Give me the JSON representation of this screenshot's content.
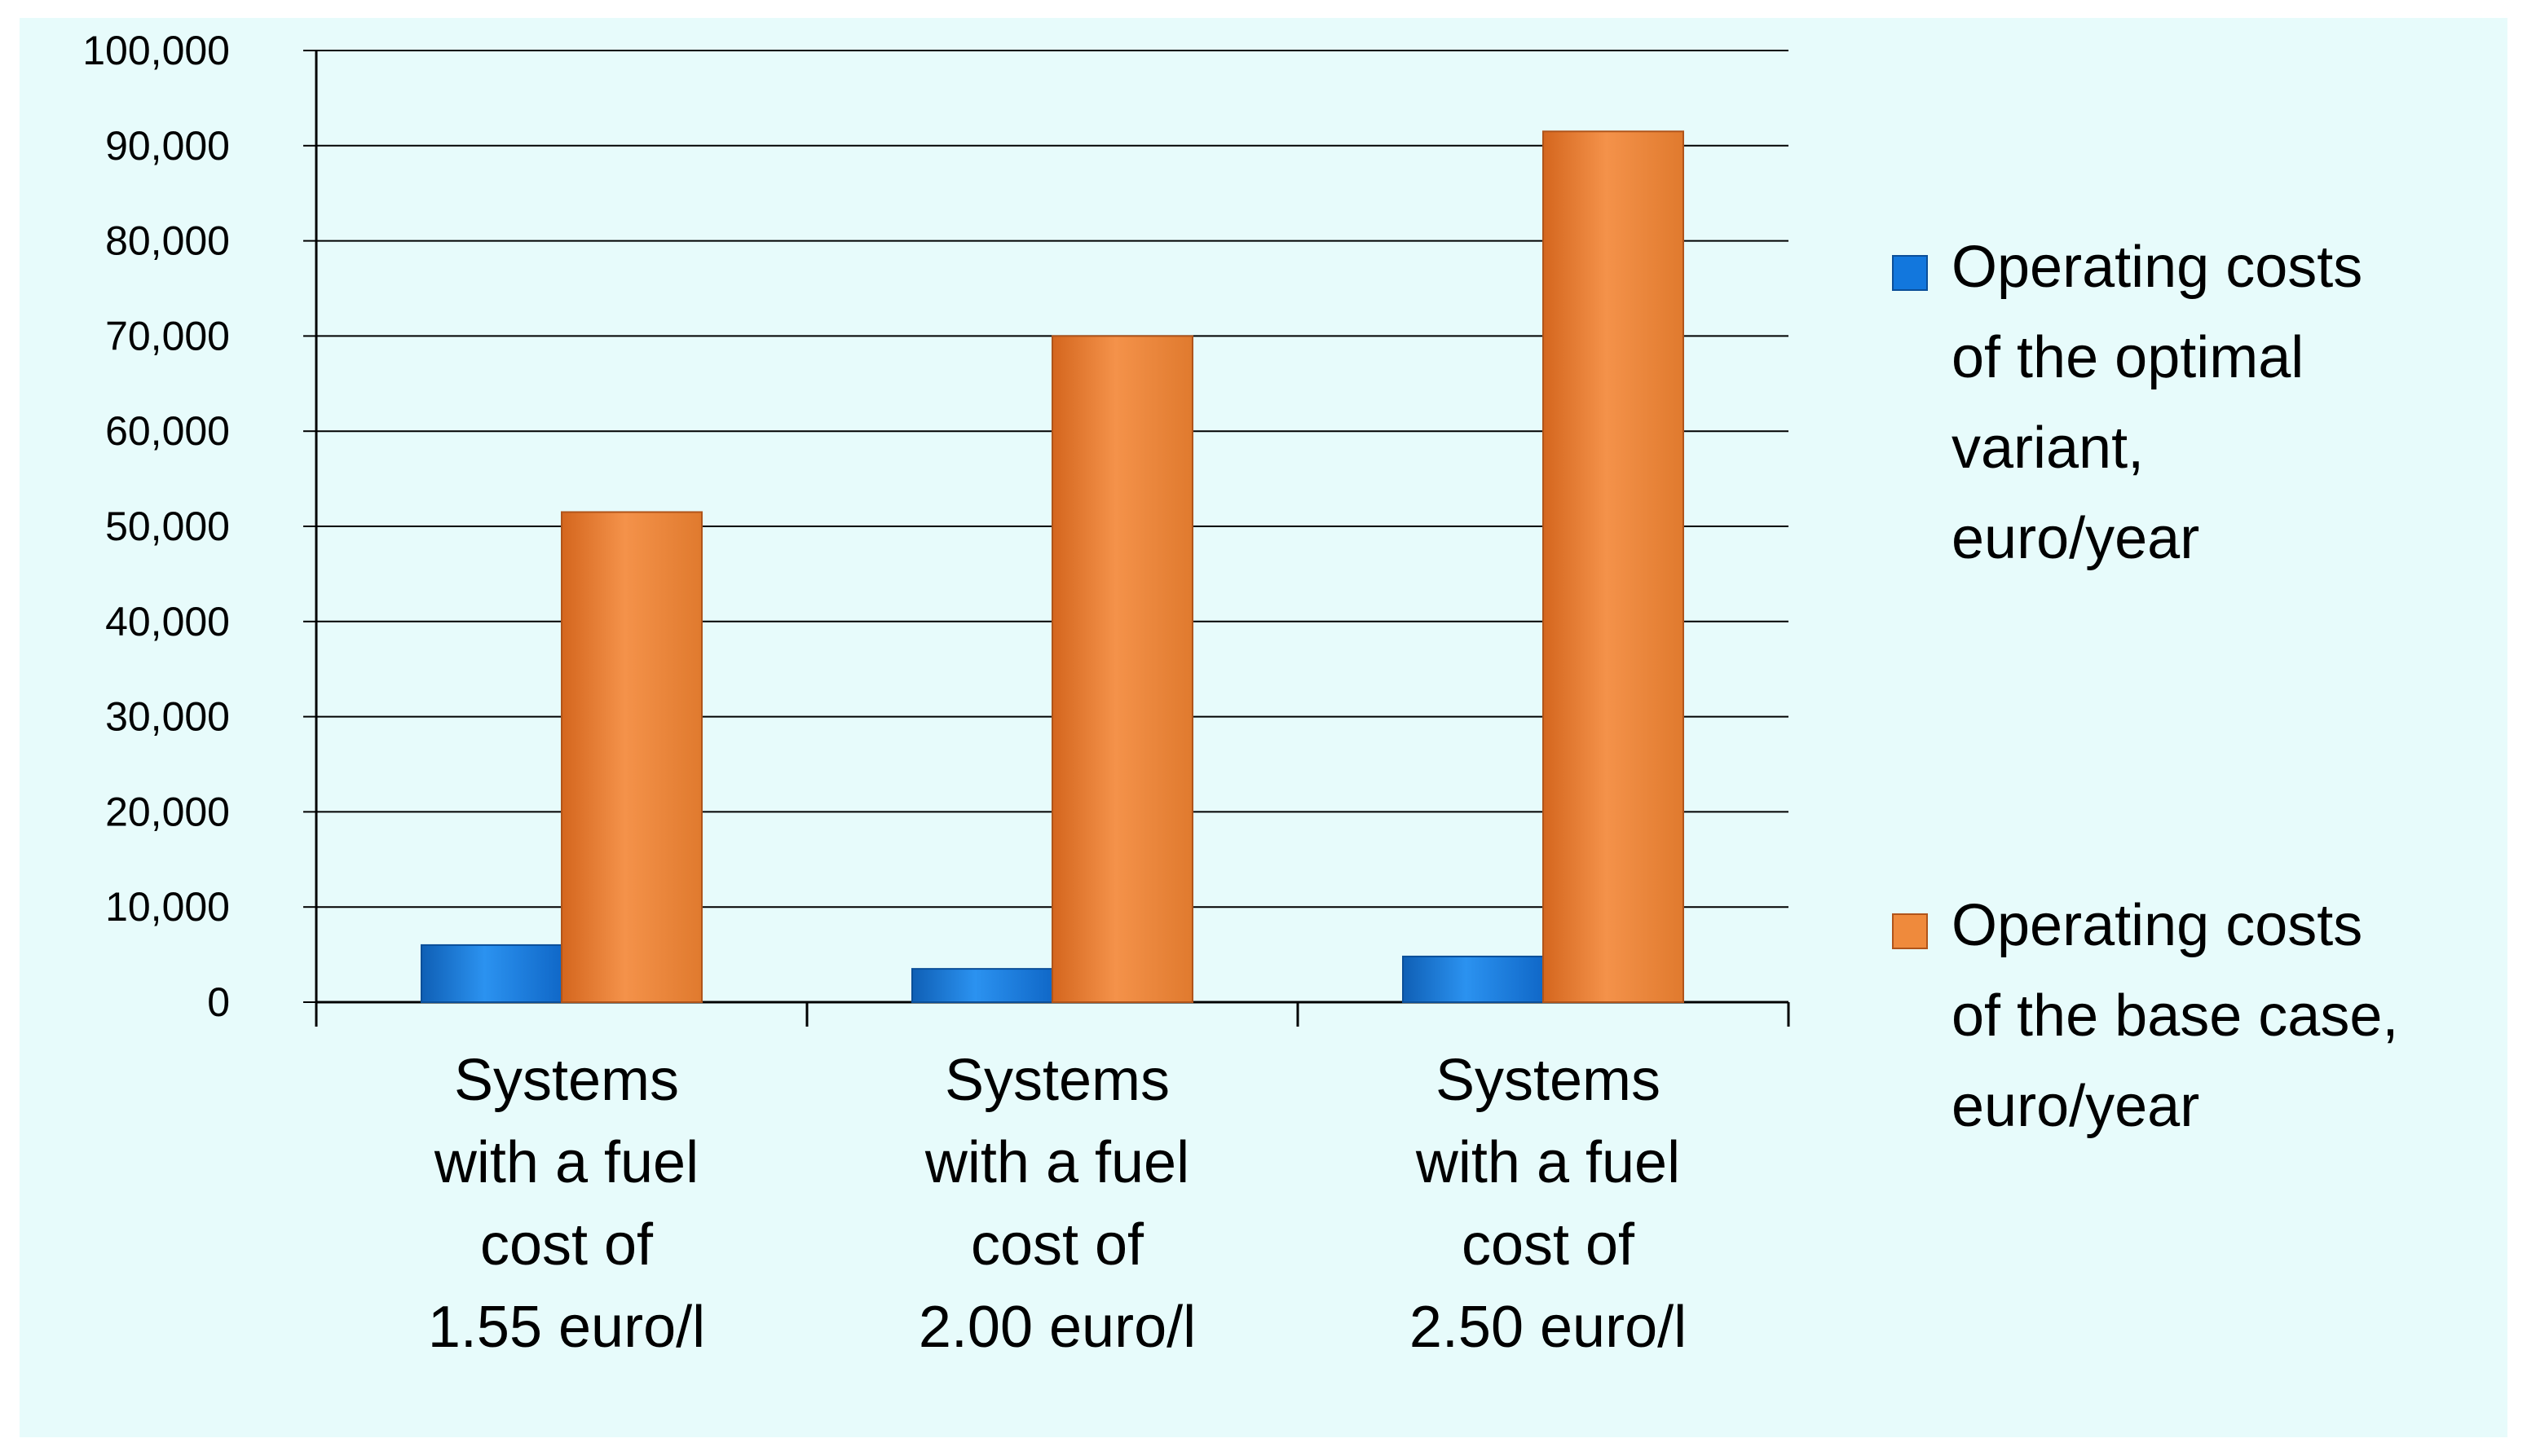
{
  "chart_data": {
    "type": "bar",
    "categories": [
      [
        "Systems",
        "with a fuel",
        "cost of",
        "1.55 euro/l"
      ],
      [
        "Systems",
        "with a fuel",
        "cost of",
        "2.00 euro/l"
      ],
      [
        "Systems",
        "with a fuel",
        "cost of",
        "2.50 euro/l"
      ]
    ],
    "series": [
      {
        "name": [
          "Operating costs",
          "of the optimal",
          "variant,",
          "euro/year"
        ],
        "values": [
          6000,
          3500,
          4800
        ],
        "color": "#1277dd"
      },
      {
        "name": [
          "Operating costs",
          "of the base case,",
          "euro/year"
        ],
        "values": [
          51500,
          70000,
          91500
        ],
        "color": "#ef8a3c"
      }
    ],
    "yticks": [
      "0",
      "10,000",
      "20,000",
      "30,000",
      "40,000",
      "50,000",
      "60,000",
      "70,000",
      "80,000",
      "90,000",
      "100,000"
    ],
    "ylim": [
      0,
      100000
    ],
    "grid": true,
    "legend": "right",
    "background": "#e7fbfb"
  }
}
